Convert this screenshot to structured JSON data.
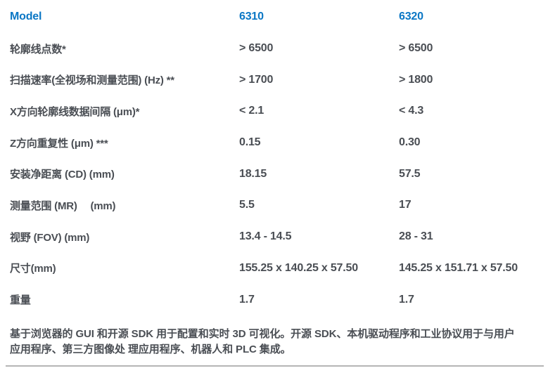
{
  "colors": {
    "accent_blue": "#0b77c5",
    "text_dark": "#4a4e54",
    "divider_gray": "#b5b5b5",
    "background": "#ffffff"
  },
  "table": {
    "header": {
      "label": "Model",
      "model_a": "6310",
      "model_b": "6320"
    },
    "rows": [
      {
        "label": "轮廓线点数*",
        "model_a": "> 6500",
        "model_b": "> 6500"
      },
      {
        "label": "扫描速率(全视场和测量范围) (Hz) **",
        "model_a": "> 1700",
        "model_b": "> 1800"
      },
      {
        "label": "X方向轮廓线数据间隔 (μm)*",
        "model_a": "< 2.1",
        "model_b": "< 4.3"
      },
      {
        "label": "Z方向重复性 (μm) ***",
        "model_a": "0.15",
        "model_b": "0.30"
      },
      {
        "label": "安装净距离 (CD) (mm)",
        "model_a": "18.15",
        "model_b": "57.5"
      },
      {
        "label": "测量范围 (MR)　 (mm)",
        "model_a": "5.5",
        "model_b": "17"
      },
      {
        "label": "视野 (FOV) (mm)",
        "model_a": "13.4 - 14.5",
        "model_b": "28 - 31"
      },
      {
        "label": "尺寸(mm)",
        "model_a": "155.25 x 140.25 x 57.50",
        "model_b": "145.25 x 151.71 x 57.50"
      },
      {
        "label": "重量",
        "model_a": "1.7",
        "model_b": "1.7"
      }
    ]
  },
  "footer": {
    "note_line1": "基于浏览器的 GUI 和开源 SDK 用于配置和实时 3D 可视化。开源 SDK、本机驱动程序和工业协议用于与用户",
    "note_line2": "应用程序、第三方图像处 理应用程序、机器人和 PLC 集成。"
  }
}
